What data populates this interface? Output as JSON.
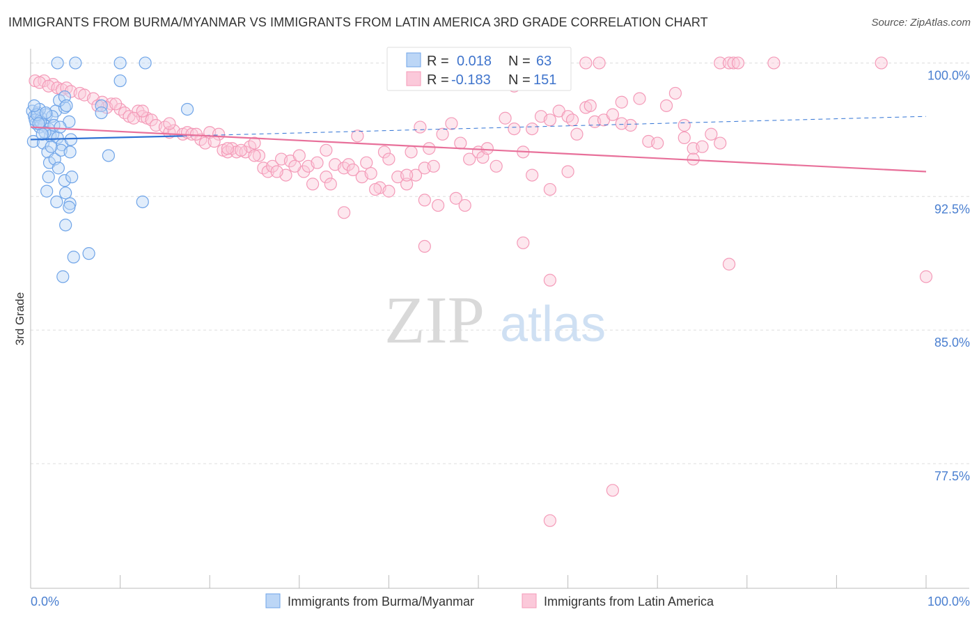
{
  "title": "IMMIGRANTS FROM BURMA/MYANMAR VS IMMIGRANTS FROM LATIN AMERICA 3RD GRADE CORRELATION CHART",
  "source": "Source: ZipAtlas.com",
  "watermark": {
    "zip": "ZIP",
    "atlas": "atlas"
  },
  "colors": {
    "blue": "#6fa4e8",
    "blue_line": "#2f72d4",
    "pink": "#f49ab8",
    "pink_line": "#e8709a",
    "tick_text": "#4a7fd0",
    "grid": "#dddddd"
  },
  "legend": {
    "rows": [
      {
        "r_label": "R =",
        "r_value": "0.018",
        "n_label": "N =",
        "n_value": "63"
      },
      {
        "r_label": "R =",
        "r_value": "-0.183",
        "n_label": "N =",
        "n_value": "151"
      }
    ]
  },
  "chart_data": {
    "type": "scatter",
    "xlabel": "",
    "ylabel": "3rd Grade",
    "xlim": [
      0,
      100
    ],
    "ylim": [
      70.5,
      100.8
    ],
    "y_ticks": [
      {
        "value": 100,
        "label": "100.0%"
      },
      {
        "value": 92.5,
        "label": "92.5%"
      },
      {
        "value": 85,
        "label": "85.0%"
      },
      {
        "value": 77.5,
        "label": "77.5%"
      }
    ],
    "x_tick_labels": [
      {
        "value": 0,
        "label": "0.0%"
      },
      {
        "value": 100,
        "label": "100.0%"
      }
    ],
    "grid": true,
    "legend_position": "top-center",
    "series": [
      {
        "name": "Immigrants from Burma/Myanmar",
        "color": "#6fa4e8",
        "trend": {
          "x": [
            0,
            17
          ],
          "y": [
            95.7,
            95.9
          ],
          "dashed_x": [
            17,
            100
          ],
          "dashed_y": [
            95.9,
            97.0
          ]
        },
        "points": [
          [
            0.2,
            97.3
          ],
          [
            0.4,
            97.0
          ],
          [
            0.6,
            96.6
          ],
          [
            0.8,
            97.2
          ],
          [
            0.5,
            96.8
          ],
          [
            1.0,
            96.4
          ],
          [
            1.2,
            96.9
          ],
          [
            1.5,
            96.5
          ],
          [
            1.8,
            97.1
          ],
          [
            2.0,
            96.3
          ],
          [
            0.3,
            95.6
          ],
          [
            1.4,
            95.5
          ],
          [
            2.2,
            95.9
          ],
          [
            2.5,
            96.0
          ],
          [
            3.0,
            95.8
          ],
          [
            3.5,
            95.4
          ],
          [
            4.5,
            95.7
          ],
          [
            1.6,
            96.1
          ],
          [
            2.8,
            97.3
          ],
          [
            3.8,
            97.5
          ],
          [
            3.2,
            97.9
          ],
          [
            4.3,
            96.7
          ],
          [
            1.0,
            97.4
          ],
          [
            2.4,
            97.0
          ],
          [
            1.9,
            95.0
          ],
          [
            2.1,
            94.4
          ],
          [
            2.7,
            94.6
          ],
          [
            3.1,
            94.1
          ],
          [
            3.4,
            95.1
          ],
          [
            4.4,
            95.0
          ],
          [
            2.0,
            93.6
          ],
          [
            3.8,
            93.4
          ],
          [
            4.6,
            93.6
          ],
          [
            1.8,
            92.8
          ],
          [
            3.9,
            92.7
          ],
          [
            2.9,
            92.2
          ],
          [
            4.4,
            92.1
          ],
          [
            4.3,
            91.9
          ],
          [
            3.9,
            90.9
          ],
          [
            4.8,
            89.1
          ],
          [
            6.5,
            89.3
          ],
          [
            3.6,
            88.0
          ],
          [
            12.5,
            92.2
          ],
          [
            8.7,
            94.8
          ],
          [
            7.9,
            97.6
          ],
          [
            7.9,
            97.2
          ],
          [
            17.5,
            97.4
          ],
          [
            10.0,
            99.0
          ],
          [
            3.0,
            100.0
          ],
          [
            5.0,
            100.0
          ],
          [
            10.0,
            100.0
          ],
          [
            12.8,
            100.0
          ],
          [
            3.8,
            98.1
          ],
          [
            4.0,
            97.6
          ],
          [
            1.1,
            96.7
          ],
          [
            1.3,
            96.0
          ],
          [
            2.6,
            96.5
          ],
          [
            0.7,
            97.1
          ],
          [
            1.7,
            97.2
          ],
          [
            0.9,
            96.6
          ],
          [
            2.3,
            95.3
          ],
          [
            3.3,
            96.4
          ],
          [
            0.4,
            97.6
          ]
        ]
      },
      {
        "name": "Immigrants from Latin America",
        "color": "#f49ab8",
        "trend": {
          "x": [
            0,
            100
          ],
          "y": [
            96.4,
            93.9
          ]
        },
        "points": [
          [
            0.5,
            99.0
          ],
          [
            1.5,
            99.0
          ],
          [
            2.5,
            98.8
          ],
          [
            1.0,
            98.9
          ],
          [
            2.0,
            98.7
          ],
          [
            3.0,
            98.6
          ],
          [
            3.5,
            98.5
          ],
          [
            4.0,
            98.6
          ],
          [
            4.5,
            98.4
          ],
          [
            5.5,
            98.3
          ],
          [
            6.0,
            98.2
          ],
          [
            7.0,
            98.0
          ],
          [
            8.0,
            97.8
          ],
          [
            9.0,
            97.7
          ],
          [
            8.5,
            97.5
          ],
          [
            10.0,
            97.4
          ],
          [
            10.5,
            97.2
          ],
          [
            11.0,
            97.0
          ],
          [
            12.0,
            97.3
          ],
          [
            12.5,
            97.0
          ],
          [
            13.0,
            96.9
          ],
          [
            13.5,
            96.8
          ],
          [
            14.0,
            96.5
          ],
          [
            15.0,
            96.4
          ],
          [
            15.5,
            96.1
          ],
          [
            16.0,
            96.2
          ],
          [
            17.0,
            96.0
          ],
          [
            17.5,
            96.1
          ],
          [
            18.0,
            96.0
          ],
          [
            19.0,
            95.7
          ],
          [
            19.5,
            95.5
          ],
          [
            20.0,
            96.1
          ],
          [
            21.0,
            96.0
          ],
          [
            21.5,
            95.1
          ],
          [
            22.0,
            95.0
          ],
          [
            22.5,
            95.2
          ],
          [
            23.0,
            95.0
          ],
          [
            24.0,
            95.0
          ],
          [
            24.5,
            95.3
          ],
          [
            25.0,
            95.5
          ],
          [
            25.5,
            94.8
          ],
          [
            26.0,
            94.1
          ],
          [
            26.5,
            93.9
          ],
          [
            27.0,
            94.2
          ],
          [
            28.0,
            94.6
          ],
          [
            28.5,
            93.7
          ],
          [
            29.0,
            94.5
          ],
          [
            30.0,
            94.8
          ],
          [
            30.5,
            93.9
          ],
          [
            31.0,
            94.2
          ],
          [
            31.5,
            93.2
          ],
          [
            32.0,
            94.4
          ],
          [
            33.0,
            93.6
          ],
          [
            33.5,
            93.2
          ],
          [
            34.0,
            94.3
          ],
          [
            35.0,
            94.1
          ],
          [
            35.5,
            94.3
          ],
          [
            36.0,
            94.0
          ],
          [
            37.0,
            93.6
          ],
          [
            37.5,
            94.4
          ],
          [
            38.0,
            93.8
          ],
          [
            39.0,
            93.0
          ],
          [
            39.5,
            95.0
          ],
          [
            40.0,
            94.6
          ],
          [
            41.0,
            93.6
          ],
          [
            42.0,
            93.2
          ],
          [
            42.5,
            95.0
          ],
          [
            43.0,
            93.7
          ],
          [
            44.0,
            94.1
          ],
          [
            45.0,
            94.2
          ],
          [
            46.0,
            96.0
          ],
          [
            47.0,
            96.6
          ],
          [
            48.0,
            95.5
          ],
          [
            49.0,
            94.6
          ],
          [
            50.0,
            95.0
          ],
          [
            50.5,
            94.7
          ],
          [
            51.0,
            95.2
          ],
          [
            52.0,
            94.2
          ],
          [
            53.0,
            96.9
          ],
          [
            54.0,
            96.3
          ],
          [
            55.0,
            95.0
          ],
          [
            56.0,
            96.3
          ],
          [
            57.0,
            97.0
          ],
          [
            58.0,
            96.8
          ],
          [
            59.0,
            97.3
          ],
          [
            60.0,
            97.0
          ],
          [
            61.0,
            96.0
          ],
          [
            62.0,
            97.5
          ],
          [
            63.0,
            96.7
          ],
          [
            64.0,
            96.8
          ],
          [
            65.0,
            97.1
          ],
          [
            66.0,
            97.8
          ],
          [
            67.0,
            96.5
          ],
          [
            68.0,
            98.0
          ],
          [
            69.0,
            95.6
          ],
          [
            70.0,
            95.5
          ],
          [
            71.0,
            97.6
          ],
          [
            72.0,
            98.3
          ],
          [
            73.0,
            96.5
          ],
          [
            74.0,
            95.2
          ],
          [
            75.0,
            95.3
          ],
          [
            76.0,
            96.0
          ],
          [
            77.0,
            95.5
          ],
          [
            22.0,
            95.2
          ],
          [
            27.5,
            93.9
          ],
          [
            36.5,
            95.9
          ],
          [
            43.5,
            96.4
          ],
          [
            44.5,
            95.2
          ],
          [
            56.0,
            93.7
          ],
          [
            58.0,
            92.9
          ],
          [
            60.0,
            93.9
          ],
          [
            47.5,
            92.4
          ],
          [
            45.5,
            92.0
          ],
          [
            44.0,
            92.3
          ],
          [
            38.5,
            92.9
          ],
          [
            42.0,
            93.7
          ],
          [
            40.0,
            92.8
          ],
          [
            35.0,
            91.6
          ],
          [
            44.0,
            89.7
          ],
          [
            55.0,
            89.9
          ],
          [
            58.0,
            87.8
          ],
          [
            62.0,
            100.0
          ],
          [
            63.5,
            100.0
          ],
          [
            77.0,
            100.0
          ],
          [
            78.0,
            100.0
          ],
          [
            78.5,
            100.0
          ],
          [
            79.0,
            100.0
          ],
          [
            83.0,
            100.0
          ],
          [
            95.0,
            100.0
          ],
          [
            100.0,
            88.0
          ],
          [
            78.0,
            88.7
          ],
          [
            65.0,
            76.0
          ],
          [
            58.0,
            74.3
          ],
          [
            73.0,
            95.8
          ],
          [
            74.0,
            94.6
          ],
          [
            60.5,
            96.8
          ],
          [
            66.0,
            96.6
          ],
          [
            62.5,
            97.6
          ],
          [
            54.0,
            98.7
          ],
          [
            12.5,
            97.3
          ],
          [
            7.5,
            97.6
          ],
          [
            9.5,
            97.7
          ],
          [
            11.5,
            96.9
          ],
          [
            15.5,
            96.6
          ],
          [
            18.5,
            96.0
          ],
          [
            20.5,
            95.6
          ],
          [
            23.5,
            95.1
          ],
          [
            25.0,
            94.8
          ],
          [
            29.5,
            94.2
          ],
          [
            33.0,
            95.1
          ],
          [
            48.5,
            92.0
          ]
        ]
      }
    ]
  }
}
